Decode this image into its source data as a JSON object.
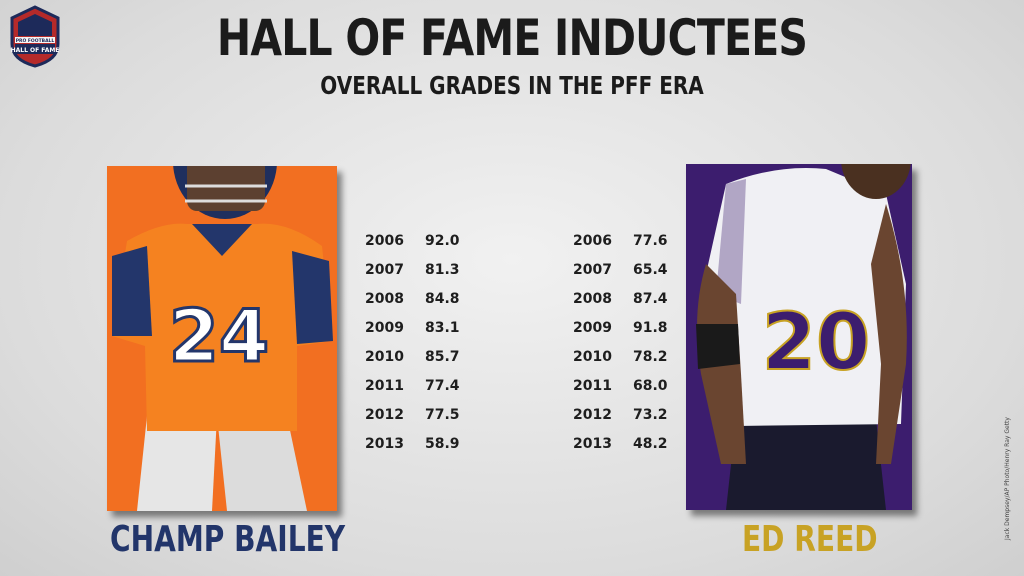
{
  "header": {
    "title": "HALL OF FAME INDUCTEES",
    "subtitle": "OVERALL GRADES IN THE PFF ERA"
  },
  "logo": {
    "line1": "PRO FOOTBALL",
    "line2": "HALL OF FAME"
  },
  "players": [
    {
      "name": "CHAMP BAILEY",
      "jersey_number": "24",
      "panel_color": "#f26f21",
      "jersey_color": "#f58220",
      "name_color": "#22356a",
      "grades": [
        {
          "year": "2006",
          "grade": "92.0"
        },
        {
          "year": "2007",
          "grade": "81.3"
        },
        {
          "year": "2008",
          "grade": "84.8"
        },
        {
          "year": "2009",
          "grade": "83.1"
        },
        {
          "year": "2010",
          "grade": "85.7"
        },
        {
          "year": "2011",
          "grade": "77.4"
        },
        {
          "year": "2012",
          "grade": "77.5"
        },
        {
          "year": "2013",
          "grade": "58.9"
        }
      ]
    },
    {
      "name": "ED REED",
      "jersey_number": "20",
      "panel_color": "#3c1d6e",
      "jersey_color": "#f0f0f4",
      "name_color": "#c8a224",
      "grades": [
        {
          "year": "2006",
          "grade": "77.6"
        },
        {
          "year": "2007",
          "grade": "65.4"
        },
        {
          "year": "2008",
          "grade": "87.4"
        },
        {
          "year": "2009",
          "grade": "91.8"
        },
        {
          "year": "2010",
          "grade": "78.2"
        },
        {
          "year": "2011",
          "grade": "68.0"
        },
        {
          "year": "2012",
          "grade": "73.2"
        },
        {
          "year": "2013",
          "grade": "48.2"
        }
      ]
    }
  ],
  "photo_credit": "Jack Dempsey/AP Photo/Henry Ray Getty"
}
